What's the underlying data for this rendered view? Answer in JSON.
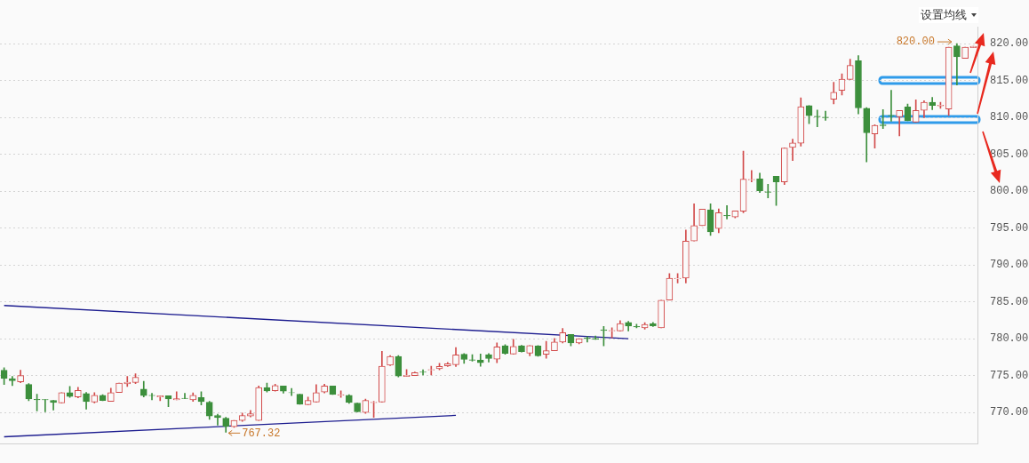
{
  "chart_data": {
    "type": "candlestick",
    "categories": [
      null,
      null,
      null,
      null,
      null,
      null,
      null,
      null,
      null,
      null,
      null,
      null,
      null,
      null,
      null,
      null,
      null,
      null,
      null,
      null,
      null,
      null,
      null,
      null,
      null,
      null,
      null,
      null,
      null,
      null,
      null,
      null,
      null,
      null,
      null,
      null,
      null,
      null,
      null,
      null,
      null,
      null,
      null,
      null,
      null,
      null,
      null,
      null,
      null,
      null,
      null,
      null,
      null,
      null,
      null,
      null,
      null,
      null,
      null,
      null,
      null,
      null,
      null,
      null,
      null,
      null,
      null,
      null,
      null,
      null,
      null,
      null,
      null,
      null,
      null,
      null,
      null,
      null,
      null,
      null,
      null,
      null,
      null,
      null,
      null,
      null,
      null,
      null,
      null,
      null,
      null,
      null,
      null,
      null,
      null,
      null,
      null,
      null,
      null,
      null,
      null,
      null,
      null,
      null,
      null,
      null,
      null,
      null,
      null,
      null,
      null,
      null,
      null,
      null,
      null,
      null,
      null,
      null,
      null
    ],
    "ohlc": [
      [
        775.74,
        776.05,
        773.8,
        774.61
      ],
      [
        774.57,
        774.88,
        773.64,
        774.3
      ],
      [
        774.15,
        775.74,
        774.03,
        775.0
      ],
      [
        773.8,
        773.91,
        771.59,
        771.82
      ],
      [
        771.78,
        772.48,
        770.19,
        771.7
      ],
      [
        771.74,
        771.74,
        770.08,
        771.7
      ],
      [
        771.63,
        771.63,
        770.31,
        771.36
      ],
      [
        771.28,
        772.67,
        771.28,
        772.67
      ],
      [
        772.67,
        773.53,
        772.05,
        772.17
      ],
      [
        772.09,
        773.41,
        771.98,
        772.98
      ],
      [
        772.56,
        772.71,
        770.43,
        771.47
      ],
      [
        771.4,
        772.67,
        771.28,
        772.33
      ],
      [
        772.33,
        772.4,
        771.6,
        771.63
      ],
      [
        771.51,
        773.29,
        771.5,
        772.67
      ],
      [
        772.71,
        773.99,
        772.71,
        773.99
      ],
      [
        773.88,
        774.88,
        773.53,
        774.11
      ],
      [
        774.07,
        775.23,
        773.91,
        774.77
      ],
      [
        773.18,
        774.22,
        772.09,
        772.29
      ],
      [
        772.31,
        772.6,
        771.71,
        772.27
      ],
      [
        772.09,
        772.25,
        771.59,
        772.25
      ],
      [
        772.25,
        772.25,
        770.78,
        771.82
      ],
      [
        771.71,
        772.79,
        771.71,
        771.86
      ],
      [
        771.92,
        772.6,
        771.86,
        771.88
      ],
      [
        771.71,
        772.64,
        771.51,
        772.33
      ],
      [
        772.02,
        772.79,
        771.01,
        771.47
      ],
      [
        771.4,
        771.51,
        769.07,
        769.5
      ],
      [
        769.57,
        769.77,
        768.29,
        769.3
      ],
      [
        769.22,
        769.34,
        767.32,
        768.14
      ],
      [
        768.06,
        768.91,
        767.98,
        768.91
      ],
      [
        768.91,
        769.92,
        768.8,
        769.57
      ],
      [
        769.5,
        770.27,
        769.38,
        769.81
      ],
      [
        768.91,
        773.6,
        768.91,
        773.37
      ],
      [
        773.37,
        773.99,
        772.75,
        772.91
      ],
      [
        772.95,
        773.84,
        772.87,
        773.64
      ],
      [
        773.6,
        773.6,
        772.6,
        772.87
      ],
      [
        772.69,
        773.26,
        772.29,
        772.66
      ],
      [
        772.48,
        772.48,
        771.12,
        771.12
      ],
      [
        771.05,
        772.09,
        771.05,
        771.63
      ],
      [
        771.4,
        773.76,
        771.4,
        772.67
      ],
      [
        772.75,
        773.84,
        772.64,
        773.6
      ],
      [
        773.6,
        773.6,
        772.44,
        772.44
      ],
      [
        772.33,
        772.91,
        772.05,
        772.4
      ],
      [
        772.33,
        772.4,
        771.24,
        771.36
      ],
      [
        771.28,
        771.28,
        770.08,
        770.08
      ],
      [
        770.0,
        771.82,
        769.88,
        771.63
      ],
      [
        771.32,
        771.51,
        769.34,
        771.4
      ],
      [
        771.4,
        778.29,
        771.4,
        776.28
      ],
      [
        776.4,
        777.71,
        776.36,
        777.6
      ],
      [
        777.6,
        777.71,
        774.81,
        774.92
      ],
      [
        774.88,
        775.81,
        774.88,
        775.04
      ],
      [
        775.0,
        775.5,
        775.0,
        775.39
      ],
      [
        775.5,
        775.78,
        775.08,
        775.43
      ],
      [
        775.74,
        776.28,
        775.08,
        775.81
      ],
      [
        775.93,
        776.67,
        775.78,
        776.24
      ],
      [
        776.32,
        776.78,
        776.24,
        776.59
      ],
      [
        776.47,
        778.8,
        776.24,
        777.79
      ],
      [
        777.88,
        777.99,
        776.64,
        777.18
      ],
      [
        777.14,
        777.84,
        776.95,
        777.06
      ],
      [
        777.1,
        777.92,
        776.25,
        776.75
      ],
      [
        777.84,
        777.99,
        776.83,
        777.3
      ],
      [
        777.22,
        779.42,
        776.75,
        778.88
      ],
      [
        779.04,
        779.19,
        777.88,
        777.99
      ],
      [
        777.92,
        779.92,
        777.92,
        778.96
      ],
      [
        779.04,
        779.11,
        778.19,
        778.26
      ],
      [
        778.03,
        779.07,
        777.68,
        779.07
      ],
      [
        779.0,
        779.07,
        777.6,
        777.68
      ],
      [
        777.88,
        779.65,
        777.33,
        778.38
      ],
      [
        778.38,
        780.04,
        778.38,
        779.54
      ],
      [
        779.54,
        781.39,
        779.42,
        780.81
      ],
      [
        780.58,
        780.58,
        779.04,
        779.42
      ],
      [
        779.42,
        780.0,
        779.31,
        780.0
      ],
      [
        780.08,
        780.27,
        779.54,
        780.0
      ],
      [
        780.04,
        780.35,
        779.89,
        779.89
      ],
      [
        781.2,
        781.66,
        779.04,
        781.12
      ],
      [
        781.05,
        781.47,
        780.12,
        781.12
      ],
      [
        781.05,
        782.44,
        781.05,
        782.05
      ],
      [
        782.2,
        782.36,
        781.05,
        781.7
      ],
      [
        781.66,
        781.97,
        781.47,
        781.59
      ],
      [
        781.47,
        782.17,
        781.28,
        781.93
      ],
      [
        782.05,
        782.2,
        781.66,
        781.74
      ],
      [
        781.47,
        785.22,
        781.47,
        785.22
      ],
      [
        785.22,
        788.82,
        785.22,
        788.2
      ],
      [
        788.12,
        788.82,
        787.54,
        788.2
      ],
      [
        788.2,
        794.73,
        787.54,
        793.22
      ],
      [
        793.23,
        798.29,
        793.23,
        795.33
      ],
      [
        795.33,
        797.55,
        795.33,
        797.55
      ],
      [
        797.47,
        798.29,
        794.0,
        794.47
      ],
      [
        794.94,
        797.59,
        794.36,
        797.08
      ],
      [
        796.73,
        798.05,
        796.23,
        796.65
      ],
      [
        796.5,
        797.32,
        796.38,
        797.32
      ],
      [
        797.28,
        805.41,
        797.08,
        801.63
      ],
      [
        801.52,
        802.8,
        801.25,
        801.6
      ],
      [
        801.67,
        802.45,
        799.81,
        800.04
      ],
      [
        799.92,
        800.93,
        799.1,
        799.84
      ],
      [
        802.02,
        802.02,
        798.05,
        801.25
      ],
      [
        801.25,
        805.84,
        800.89,
        805.84
      ],
      [
        805.91,
        807.04,
        804.16,
        806.54
      ],
      [
        806.5,
        812.65,
        806.11,
        811.44
      ],
      [
        811.6,
        811.6,
        809.14,
        810.23
      ],
      [
        810.16,
        811.01,
        808.72,
        810.08
      ],
      [
        810.04,
        810.86,
        809.61,
        809.96
      ],
      [
        812.45,
        814.75,
        811.83,
        813.42
      ],
      [
        813.66,
        815.91,
        813.04,
        815.18
      ],
      [
        815.14,
        817.9,
        815.14,
        817.04
      ],
      [
        817.67,
        818.37,
        810.47,
        811.28
      ],
      [
        811.25,
        811.32,
        803.97,
        807.9
      ],
      [
        807.75,
        809.01,
        805.84,
        808.93
      ],
      [
        808.97,
        811.05,
        808.5,
        808.89
      ],
      [
        810.27,
        813.69,
        809.49,
        810.2
      ],
      [
        810.08,
        810.94,
        807.49,
        810.94
      ],
      [
        811.41,
        811.8,
        809.53,
        809.53
      ],
      [
        809.37,
        812.39,
        809.37,
        810.94
      ],
      [
        810.94,
        812.27,
        809.96,
        812.04
      ],
      [
        812.04,
        812.71,
        811.05,
        811.61
      ],
      [
        811.57,
        812.04,
        811.22,
        811.65
      ],
      [
        811.14,
        819.53,
        810.27,
        819.53
      ],
      [
        819.69,
        820.0,
        814.39,
        818.2
      ],
      [
        818.0,
        819.53,
        818.0,
        819.53
      ],
      [
        819.45,
        819.65,
        819.45,
        819.65
      ]
    ],
    "colors": [
      "#3c8f3c",
      "#3c8f3c",
      "#d24b4b",
      "#3c8f3c",
      "#3c8f3c",
      "#3c8f3c",
      "#3c8f3c",
      "#d24b4b",
      "#3c8f3c",
      "#d24b4b",
      "#3c8f3c",
      "#d24b4b",
      "#3c8f3c",
      "#d24b4b",
      "#d24b4b",
      "#d24b4b",
      "#d24b4b",
      "#3c8f3c",
      "#3c8f3c",
      "#d24b4b",
      "#3c8f3c",
      "#d24b4b",
      "#3c8f3c",
      "#d24b4b",
      "#3c8f3c",
      "#3c8f3c",
      "#3c8f3c",
      "#3c8f3c",
      "#d24b4b",
      "#d24b4b",
      "#d24b4b",
      "#d24b4b",
      "#3c8f3c",
      "#d24b4b",
      "#3c8f3c",
      "#3c8f3c",
      "#3c8f3c",
      "#d24b4b",
      "#d24b4b",
      "#d24b4b",
      "#3c8f3c",
      "#d24b4b",
      "#3c8f3c",
      "#3c8f3c",
      "#d24b4b",
      "#d24b4b",
      "#d24b4b",
      "#d24b4b",
      "#3c8f3c",
      "#d24b4b",
      "#d24b4b",
      "#3c8f3c",
      "#d24b4b",
      "#d24b4b",
      "#d24b4b",
      "#d24b4b",
      "#3c8f3c",
      "#3c8f3c",
      "#3c8f3c",
      "#3c8f3c",
      "#d24b4b",
      "#3c8f3c",
      "#d24b4b",
      "#3c8f3c",
      "#d24b4b",
      "#3c8f3c",
      "#d24b4b",
      "#d24b4b",
      "#d24b4b",
      "#3c8f3c",
      "#d24b4b",
      "#3c8f3c",
      "#3c8f3c",
      "#3c8f3c",
      "#d24b4b",
      "#d24b4b",
      "#3c8f3c",
      "#3c8f3c",
      "#d24b4b",
      "#3c8f3c",
      "#d24b4b",
      "#d24b4b",
      "#d24b4b",
      "#d24b4b",
      "#d24b4b",
      "#d24b4b",
      "#3c8f3c",
      "#d24b4b",
      "#3c8f3c",
      "#d24b4b",
      "#d24b4b",
      "#d24b4b",
      "#3c8f3c",
      "#3c8f3c",
      "#3c8f3c",
      "#d24b4b",
      "#d24b4b",
      "#d24b4b",
      "#3c8f3c",
      "#3c8f3c",
      "#3c8f3c",
      "#d24b4b",
      "#d24b4b",
      "#d24b4b",
      "#3c8f3c",
      "#3c8f3c",
      "#d24b4b",
      "#3c8f3c",
      "#3c8f3c",
      "#d24b4b",
      "#3c8f3c",
      "#d24b4b",
      "#d24b4b",
      "#3c8f3c",
      "#d24b4b",
      "#d24b4b",
      "#3c8f3c",
      "#d24b4b",
      "#d24b4b"
    ],
    "series": [
      {
        "type": "line",
        "color": "#1c1c8f",
        "values": [
          784.5,
          null,
          null,
          null,
          null,
          null,
          null,
          null,
          null,
          null,
          null,
          null,
          null,
          null,
          null,
          null,
          null,
          null,
          null,
          null,
          null,
          null,
          null,
          null,
          null,
          null,
          null,
          null,
          null,
          null,
          null,
          null,
          null,
          null,
          null,
          null,
          null,
          null,
          null,
          null,
          null,
          null,
          null,
          null,
          null,
          null,
          null,
          null,
          null,
          null,
          null,
          null,
          null,
          null,
          null,
          null,
          null,
          null,
          null,
          null,
          null,
          null,
          null,
          null,
          null,
          null,
          null,
          null,
          null,
          null,
          null,
          null,
          null,
          null,
          null,
          null,
          780.0,
          null,
          null,
          null,
          null,
          null,
          null,
          null,
          null,
          null,
          null,
          null,
          null,
          null,
          null,
          null,
          null,
          null,
          null,
          null,
          null,
          null,
          null,
          null,
          null,
          null,
          null,
          null,
          null,
          null,
          null,
          null,
          null,
          null,
          null,
          null,
          null,
          null,
          null,
          null,
          null,
          null,
          null
        ]
      },
      {
        "type": "line",
        "color": "#1c1c8f",
        "values": [
          766.7,
          null,
          null,
          null,
          null,
          null,
          null,
          null,
          null,
          null,
          null,
          null,
          null,
          null,
          null,
          null,
          null,
          null,
          null,
          null,
          null,
          null,
          null,
          null,
          null,
          null,
          null,
          null,
          null,
          null,
          null,
          null,
          null,
          null,
          null,
          null,
          null,
          null,
          null,
          null,
          null,
          null,
          null,
          null,
          null,
          null,
          null,
          null,
          null,
          null,
          null,
          null,
          null,
          null,
          null,
          769.6,
          null,
          null,
          null,
          null,
          null,
          null,
          null,
          null,
          null,
          null,
          null,
          null,
          null,
          null,
          null,
          null,
          null,
          null,
          null,
          null,
          null,
          null,
          null,
          null,
          null,
          null,
          null,
          null,
          null,
          null,
          null,
          null,
          null,
          null,
          null,
          null,
          null,
          null,
          null,
          null,
          null,
          null,
          null,
          null,
          null,
          null,
          null,
          null,
          null,
          null,
          null,
          null,
          null,
          null,
          null,
          null,
          null,
          null,
          null,
          null,
          null,
          null,
          null
        ]
      }
    ],
    "ylim": [
      765.7,
      822.3
    ],
    "yticks": [
      {
        "value": 770,
        "label": "770.00"
      },
      {
        "value": 775,
        "label": "775.00"
      },
      {
        "value": 780,
        "label": "780.00"
      },
      {
        "value": 785,
        "label": "785.00"
      },
      {
        "value": 790,
        "label": "790.00"
      },
      {
        "value": 795,
        "label": "795.00"
      },
      {
        "value": 800,
        "label": "800.00"
      },
      {
        "value": 805,
        "label": "805.00"
      },
      {
        "value": 810,
        "label": "810.00"
      },
      {
        "value": 815,
        "label": "815.00"
      },
      {
        "value": 820,
        "label": "820.00"
      }
    ],
    "grid": "y",
    "tick_labels": "y",
    "legend": false,
    "annotations": [
      "设置均线",
      "820.00",
      "767.32"
    ]
  }
}
